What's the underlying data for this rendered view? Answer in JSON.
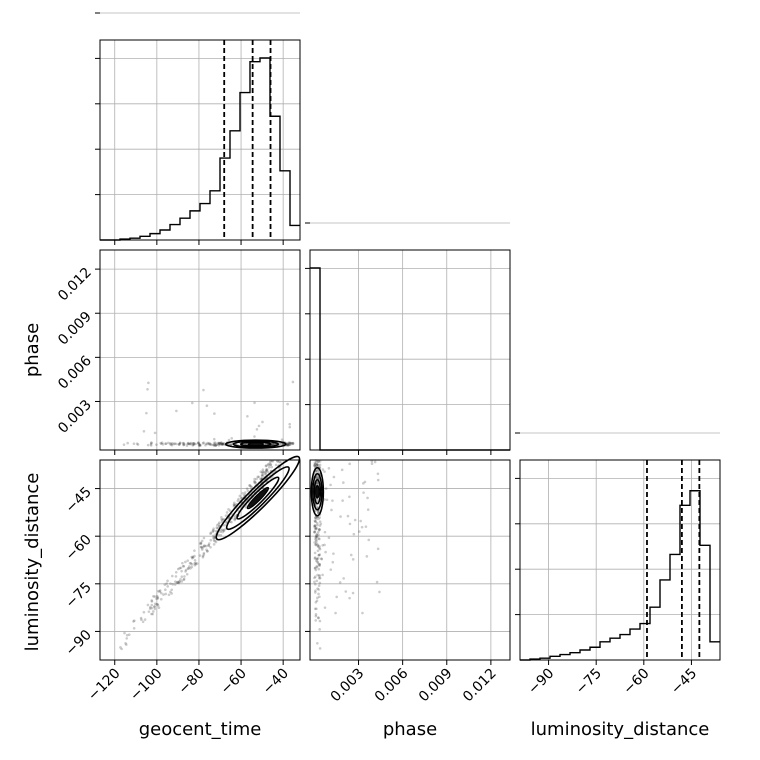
{
  "chart_data": {
    "type": "corner",
    "parameters": [
      "geocent_time",
      "phase",
      "luminosity_distance"
    ],
    "axis_labels": {
      "geocent_time": "geocent_time",
      "phase": "phase",
      "luminosity_distance": "luminosity_distance"
    },
    "ranges": {
      "geocent_time": [
        -127,
        -32
      ],
      "phase": [
        -0.0003,
        0.0133
      ],
      "luminosity_distance": [
        -99,
        -36
      ]
    },
    "ticks": {
      "geocent_time": [
        -120,
        -100,
        -80,
        -60,
        -40
      ],
      "phase": [
        0.003,
        0.006,
        0.009,
        0.012
      ],
      "luminosity_distance": [
        -90,
        -75,
        -60,
        -45
      ]
    },
    "tick_labels": {
      "geocent_time": [
        "−120",
        "−100",
        "−80",
        "−60",
        "−40"
      ],
      "phase": [
        "0.003",
        "0.006",
        "0.009",
        "0.012"
      ],
      "luminosity_distance": [
        "−90",
        "−75",
        "−60",
        "−45"
      ]
    },
    "histograms": {
      "geocent_time": {
        "bin_edges": [
          -127,
          -122.25,
          -117.5,
          -112.75,
          -108,
          -103.25,
          -98.5,
          -93.75,
          -89,
          -84.25,
          -79.5,
          -74.75,
          -70,
          -65.25,
          -60.5,
          -55.75,
          -51,
          -46.25,
          -41.5,
          -36.75,
          -32
        ],
        "counts": [
          0,
          0,
          0.5,
          1,
          2,
          3.5,
          5.5,
          8.5,
          12,
          16,
          20,
          27,
          45,
          60,
          81,
          98,
          100,
          68,
          38,
          8
        ],
        "quantiles": [
          -68,
          -54.5,
          -46
        ]
      },
      "phase": {
        "bin_edges": [
          -0.0003,
          0.00038,
          0.00106,
          0.00174,
          0.00242,
          0.0031,
          0.00378,
          0.00446,
          0.00514,
          0.00582,
          0.0065,
          0.00718,
          0.00786,
          0.00854,
          0.00922,
          0.0099,
          0.01058,
          0.01126,
          0.01194,
          0.01262,
          0.0133
        ],
        "counts": [
          100,
          0,
          0,
          0,
          0,
          0,
          0,
          0,
          0,
          0,
          0,
          0,
          0,
          0,
          0,
          0,
          0,
          0,
          0,
          0
        ],
        "quantiles": []
      },
      "luminosity_distance": {
        "bin_edges": [
          -99,
          -95.85,
          -92.7,
          -89.55,
          -86.4,
          -83.25,
          -80.1,
          -76.95,
          -73.8,
          -70.65,
          -67.5,
          -64.35,
          -61.2,
          -58.05,
          -54.9,
          -51.75,
          -48.6,
          -45.45,
          -42.3,
          -39.15,
          -36
        ],
        "counts": [
          0,
          0.5,
          1,
          2,
          3,
          4,
          5.5,
          7,
          10,
          12,
          14,
          17,
          20,
          29,
          44,
          58,
          85,
          93,
          63,
          10
        ],
        "quantiles": [
          -59,
          -48,
          -42.5
        ]
      }
    },
    "hist_y_ticks": 5,
    "contour_levels": 4,
    "grid": true
  }
}
